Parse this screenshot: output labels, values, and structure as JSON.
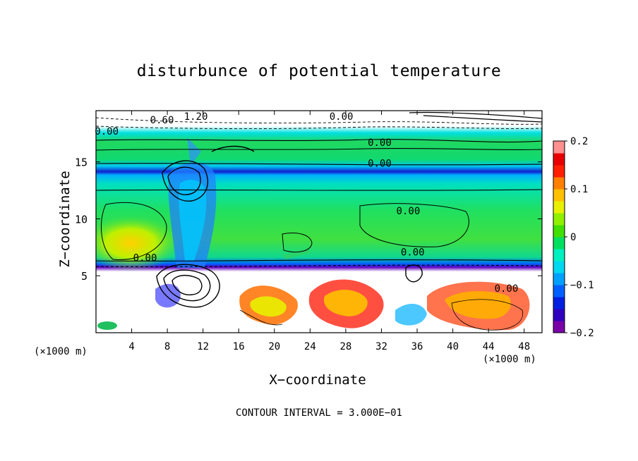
{
  "chart_data": {
    "type": "heatmap",
    "title": "disturbunce of potential temperature",
    "xlabel": "X−coordinate",
    "ylabel": "Z−coordinate",
    "x_unit": "(×1000 m)",
    "x_ticks": [
      4,
      8,
      12,
      16,
      20,
      24,
      28,
      32,
      36,
      40,
      44,
      48
    ],
    "y_ticks": [
      5,
      10,
      15
    ],
    "xlim": [
      0,
      50
    ],
    "ylim": [
      0,
      19.5
    ],
    "colorbar": {
      "ticks": [
        "0.2",
        "0.1",
        "0",
        "−0.1",
        "−0.2"
      ],
      "range": [
        -0.2,
        0.2
      ],
      "colors": [
        "#7a00a8",
        "#3000c0",
        "#0020e0",
        "#0060ff",
        "#00a0ff",
        "#00d8f0",
        "#00f0c0",
        "#00e060",
        "#40e000",
        "#90f000",
        "#e8f000",
        "#ffc000",
        "#ff8000",
        "#ff2000",
        "#e80000",
        "#ff9090"
      ]
    },
    "contour_labels": [
      {
        "text": "0.00",
        "x": 31.8,
        "y": 16.7
      },
      {
        "text": "0.00",
        "x": 31.8,
        "y": 14.9
      },
      {
        "text": "0.00",
        "x": 35.0,
        "y": 10.7
      },
      {
        "text": "0.00",
        "x": 35.5,
        "y": 7.1
      },
      {
        "text": "0.00",
        "x": 5.5,
        "y": 6.6
      },
      {
        "text": "0.00",
        "x": 46.0,
        "y": 3.9
      },
      {
        "text": "0.60",
        "x": 7.4,
        "y": 18.7
      },
      {
        "text": "1.20",
        "x": 11.2,
        "y": 19.0
      },
      {
        "text": "0.00",
        "x": 1.2,
        "y": 17.7
      },
      {
        "text": "0.00",
        "x": 27.5,
        "y": 19.0
      }
    ],
    "footer": "CONTOUR INTERVAL = 3.000E−01"
  }
}
